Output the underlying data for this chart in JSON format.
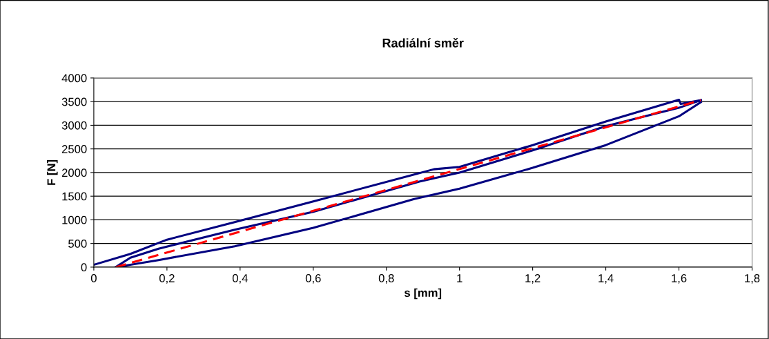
{
  "chart_data": {
    "type": "line",
    "title": "Radiální směr",
    "xlabel": "s [mm]",
    "ylabel": "F [N]",
    "xlim": [
      0,
      1.8
    ],
    "xticks": [
      {
        "value": 0,
        "label": "0"
      },
      {
        "value": 0.2,
        "label": "0,2"
      },
      {
        "value": 0.4,
        "label": "0,4"
      },
      {
        "value": 0.6,
        "label": "0,6"
      },
      {
        "value": 0.8,
        "label": "0,8"
      },
      {
        "value": 1,
        "label": "1"
      },
      {
        "value": 1.2,
        "label": "1,2"
      },
      {
        "value": 1.4,
        "label": "1,4"
      },
      {
        "value": 1.6,
        "label": "1,6"
      },
      {
        "value": 1.8,
        "label": "1,8"
      }
    ],
    "ylim": [
      0,
      4000
    ],
    "yticks": [
      0,
      500,
      1000,
      1500,
      2000,
      2500,
      3000,
      3500,
      4000
    ],
    "grid": "y",
    "marker": "none",
    "series": [
      {
        "color": "#000080",
        "line_style": "solid",
        "x": [
          0.06,
          0.1,
          0.177,
          0.385,
          0.6,
          0.89,
          1.0,
          1.2,
          1.4,
          1.6,
          1.66
        ],
        "values": [
          0,
          200,
          390,
          790,
          1170,
          1810,
          2000,
          2470,
          2980,
          3370,
          3530
        ]
      },
      {
        "color": "#000080",
        "line_style": "solid",
        "x": [
          1.66,
          1.6,
          1.4,
          1.2,
          1.0,
          0.876,
          0.6,
          0.385,
          0.177,
          0.06
        ],
        "values": [
          3490,
          3190,
          2580,
          2100,
          1660,
          1440,
          830,
          440,
          150,
          0
        ]
      },
      {
        "color": "#000080",
        "line_style": "solid",
        "x": [
          1.66,
          1.605,
          1.6,
          1.4,
          1.2,
          1.0,
          0.93,
          0.6,
          0.385,
          0.2,
          0.1,
          0
        ],
        "values": [
          3530,
          3450,
          3540,
          3080,
          2580,
          2120,
          2070,
          1390,
          950,
          580,
          280,
          50
        ]
      },
      {
        "color": "#ff0000",
        "line_style": "dashed",
        "x": [
          0.06,
          1.66
        ],
        "values": [
          0,
          3530
        ]
      }
    ]
  }
}
